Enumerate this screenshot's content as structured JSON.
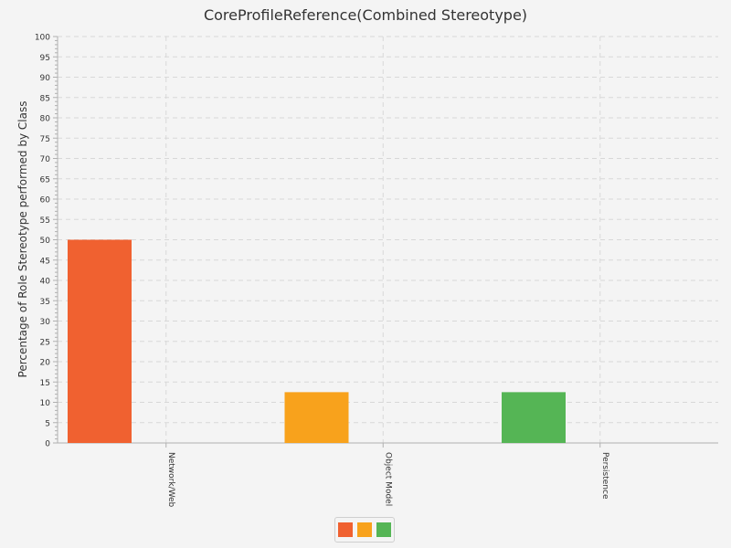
{
  "chart_data": {
    "type": "bar",
    "title": "CoreProfileReference(Combined Stereotype)",
    "xlabel": "",
    "ylabel": "Percentage of Role Stereotype performed by Class",
    "ylim": [
      0,
      100
    ],
    "y_ticks": [
      0,
      5,
      10,
      15,
      20,
      25,
      30,
      35,
      40,
      45,
      50,
      55,
      60,
      65,
      70,
      75,
      80,
      85,
      90,
      95,
      100
    ],
    "categories": [
      "Network/Web",
      "Object Model",
      "Persistence"
    ],
    "values": [
      50,
      12.5,
      12.5
    ],
    "colors": [
      "#f06130",
      "#f8a21c",
      "#55b555"
    ],
    "grid": true,
    "legend": {
      "position": "bottom-center",
      "entries": [
        "",
        "",
        ""
      ]
    }
  }
}
